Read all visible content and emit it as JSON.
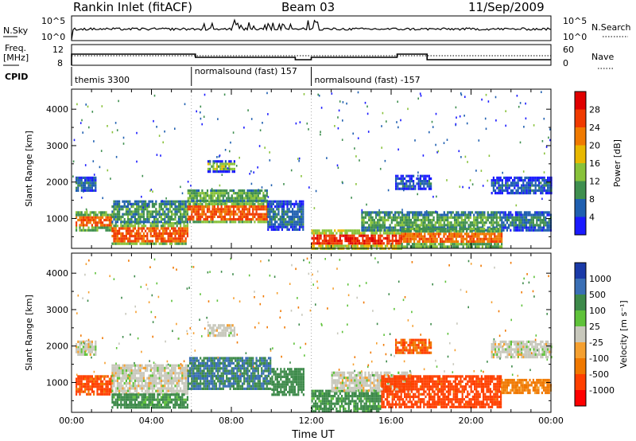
{
  "header": {
    "station": "Rankin Inlet (fitACF)",
    "beam": "Beam 03",
    "date": "11/Sep/2009"
  },
  "summary": {
    "nsky_label": "N.Sky",
    "nsky_ticks": [
      "10^5",
      "10^0"
    ],
    "nsearch_label": "N.Search",
    "nsearch_ticks": [
      "10^5",
      "10^0"
    ],
    "freq_label_1": "Freq.",
    "freq_label_2": "[MHz]",
    "freq_ticks": [
      "12",
      "8"
    ],
    "nave_label": "Nave",
    "nave_ticks": [
      "60",
      "0"
    ],
    "cpid_label": "CPID",
    "cpid_segments": [
      {
        "label": "themis 3300",
        "start_hour": 0
      },
      {
        "label": "normalsound (fast) 157",
        "start_hour": 6
      },
      {
        "label": "normalsound (fast) -157",
        "start_hour": 12
      }
    ]
  },
  "axes": {
    "ylabel": "Slant Range [km]",
    "xlabel": "Time UT",
    "x_ticks": [
      "00:00",
      "04:00",
      "08:00",
      "12:00",
      "16:00",
      "20:00",
      "00:00"
    ],
    "x_tick_hours": [
      0,
      4,
      8,
      12,
      16,
      20,
      24
    ],
    "y_ticks": [
      "1000",
      "2000",
      "3000",
      "4000"
    ],
    "y_tick_values": [
      1000,
      2000,
      3000,
      4000
    ],
    "xlim_hours": [
      0,
      24
    ],
    "ylim_km": [
      180,
      4550
    ]
  },
  "colorbars": {
    "power": {
      "label": "Power [dB]",
      "ticks": [
        "4",
        "8",
        "12",
        "16",
        "20",
        "24",
        "28"
      ],
      "colors": [
        "#1a1aff",
        "#1f5fb0",
        "#3f8f4f",
        "#88c23a",
        "#e8b800",
        "#f07a00",
        "#f03a00",
        "#e00000"
      ]
    },
    "velocity": {
      "label": "Velocity [m s⁻¹]",
      "ticks": [
        "1000",
        "500",
        "100",
        "25",
        "-25",
        "-100",
        "-500",
        "-1000"
      ],
      "colors": [
        "#1a3aa8",
        "#3a6fb5",
        "#3d8a4a",
        "#5fc23a",
        "#c8c8bc",
        "#f5a030",
        "#f07800",
        "#ff4000",
        "#ff0000"
      ]
    }
  },
  "chart_data": [
    {
      "type": "heatmap",
      "name": "power",
      "xlabel": "Time UT",
      "ylabel": "Slant Range [km]",
      "xlim": [
        0,
        24
      ],
      "ylim": [
        180,
        4550
      ],
      "colorbar_label": "Power [dB]",
      "regions": [
        {
          "t0": 0.2,
          "t1": 1.2,
          "r0": 1750,
          "r1": 2150,
          "power": 9
        },
        {
          "t0": 0.2,
          "t1": 2.0,
          "r0": 700,
          "r1": 1200,
          "power": 26
        },
        {
          "t0": 2.0,
          "t1": 5.8,
          "r0": 300,
          "r1": 900,
          "power": 27
        },
        {
          "t0": 2.0,
          "t1": 5.8,
          "r0": 900,
          "r1": 1500,
          "power": 12
        },
        {
          "t0": 5.8,
          "t1": 9.8,
          "r0": 900,
          "r1": 1500,
          "power": 27
        },
        {
          "t0": 5.8,
          "t1": 9.8,
          "r0": 1500,
          "r1": 1800,
          "power": 14
        },
        {
          "t0": 6.8,
          "t1": 8.2,
          "r0": 2300,
          "r1": 2600,
          "power": 16
        },
        {
          "t0": 9.8,
          "t1": 11.6,
          "r0": 700,
          "r1": 1500,
          "power": 9
        },
        {
          "t0": 12.0,
          "t1": 16.5,
          "r0": 200,
          "r1": 700,
          "power": 29
        },
        {
          "t0": 14.5,
          "t1": 21.5,
          "r0": 700,
          "r1": 1200,
          "power": 13
        },
        {
          "t0": 16.5,
          "t1": 21.5,
          "r0": 250,
          "r1": 750,
          "power": 25
        },
        {
          "t0": 16.2,
          "t1": 18.0,
          "r0": 1800,
          "r1": 2200,
          "power": 8
        },
        {
          "t0": 21.0,
          "t1": 24.0,
          "r0": 1700,
          "r1": 2150,
          "power": 8
        },
        {
          "t0": 21.5,
          "t1": 24.0,
          "r0": 700,
          "r1": 1200,
          "power": 10
        }
      ]
    },
    {
      "type": "heatmap",
      "name": "velocity",
      "xlabel": "Time UT",
      "ylabel": "Slant Range [km]",
      "xlim": [
        0,
        24
      ],
      "ylim": [
        180,
        4550
      ],
      "colorbar_label": "Velocity [m s⁻¹]",
      "regions": [
        {
          "t0": 0.2,
          "t1": 1.2,
          "r0": 1750,
          "r1": 2150,
          "velocity": 0
        },
        {
          "t0": 0.2,
          "t1": 2.0,
          "r0": 700,
          "r1": 1200,
          "velocity": -400
        },
        {
          "t0": 2.0,
          "t1": 5.8,
          "r0": 700,
          "r1": 1500,
          "velocity": 0
        },
        {
          "t0": 2.0,
          "t1": 5.8,
          "r0": 300,
          "r1": 700,
          "velocity": 100
        },
        {
          "t0": 5.8,
          "t1": 10.0,
          "r0": 800,
          "r1": 1700,
          "velocity": 300
        },
        {
          "t0": 6.8,
          "t1": 8.2,
          "r0": 2300,
          "r1": 2600,
          "velocity": 0
        },
        {
          "t0": 10.0,
          "t1": 11.6,
          "r0": 700,
          "r1": 1400,
          "velocity": 200
        },
        {
          "t0": 12.0,
          "t1": 15.5,
          "r0": 200,
          "r1": 800,
          "velocity": 100
        },
        {
          "t0": 13.0,
          "t1": 17.0,
          "r0": 800,
          "r1": 1300,
          "velocity": 0
        },
        {
          "t0": 15.5,
          "t1": 21.5,
          "r0": 300,
          "r1": 1200,
          "velocity": -500
        },
        {
          "t0": 16.2,
          "t1": 18.0,
          "r0": 1800,
          "r1": 2200,
          "velocity": -300
        },
        {
          "t0": 21.0,
          "t1": 24.0,
          "r0": 1700,
          "r1": 2150,
          "velocity": 0
        },
        {
          "t0": 21.5,
          "t1": 24.0,
          "r0": 700,
          "r1": 1100,
          "velocity": -100
        }
      ]
    }
  ]
}
